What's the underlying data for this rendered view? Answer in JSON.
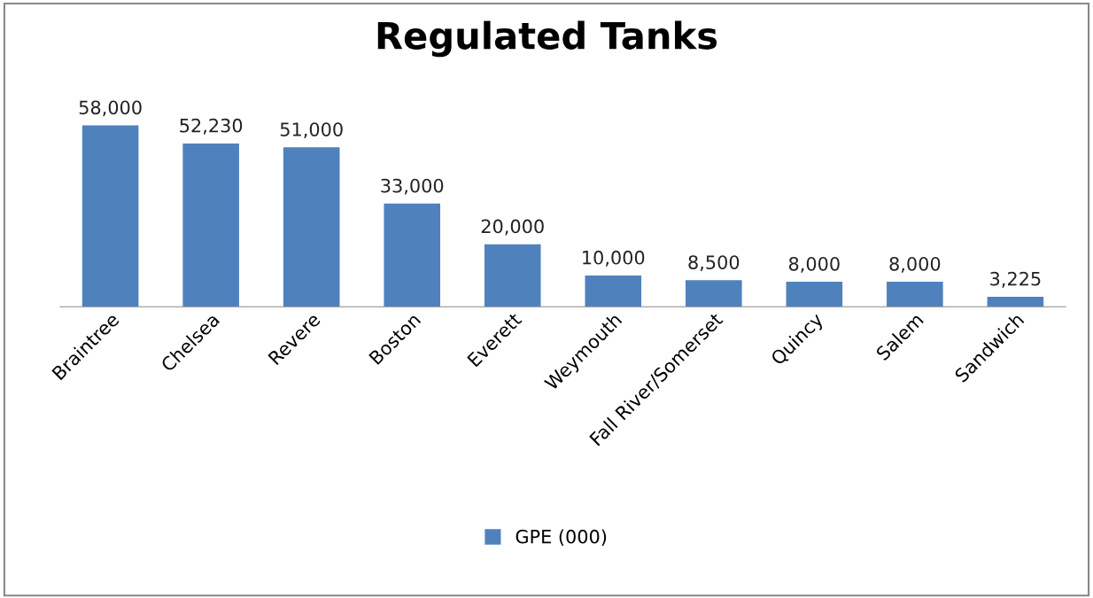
{
  "chart_data": {
    "type": "bar",
    "title": "Regulated Tanks",
    "categories": [
      "Braintree",
      "Chelsea",
      "Revere",
      "Boston",
      "Everett",
      "Weymouth",
      "Fall River/Somerset",
      "Quincy",
      "Salem",
      "Sandwich"
    ],
    "series": [
      {
        "name": "GPE (000)",
        "color": "#4f81bd",
        "values": [
          58000,
          52230,
          51000,
          33000,
          20000,
          10000,
          8500,
          8000,
          8000,
          3225
        ],
        "value_labels": [
          "58,000",
          "52,230",
          "51,000",
          "33,000",
          "20,000",
          "10,000",
          "8,500",
          "8,000",
          "8,000",
          "3,225"
        ]
      }
    ],
    "legend": "bottom",
    "grid": false,
    "tick_labels": "x"
  }
}
